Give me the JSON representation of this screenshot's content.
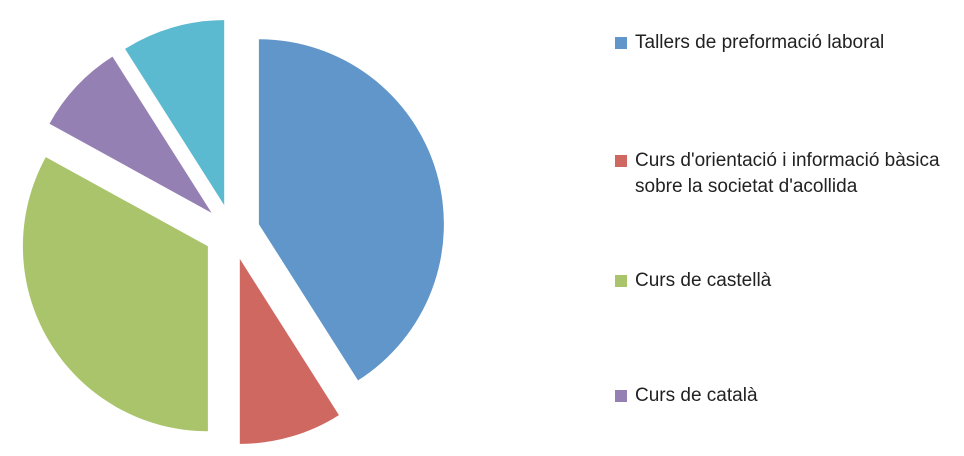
{
  "chart_data": {
    "type": "pie",
    "categories": [
      "Tallers de preformació laboral",
      "Curs d'orientació i informació bàsica sobre la societat d'acollida",
      "Curs de castellà",
      "Curs de català",
      null
    ],
    "values": [
      41,
      9,
      33,
      8,
      9
    ],
    "colors": [
      "#6096c9",
      "#cf6860",
      "#aac46c",
      "#9580b4",
      "#5bbad0"
    ],
    "exploded": true,
    "legend": "right"
  }
}
